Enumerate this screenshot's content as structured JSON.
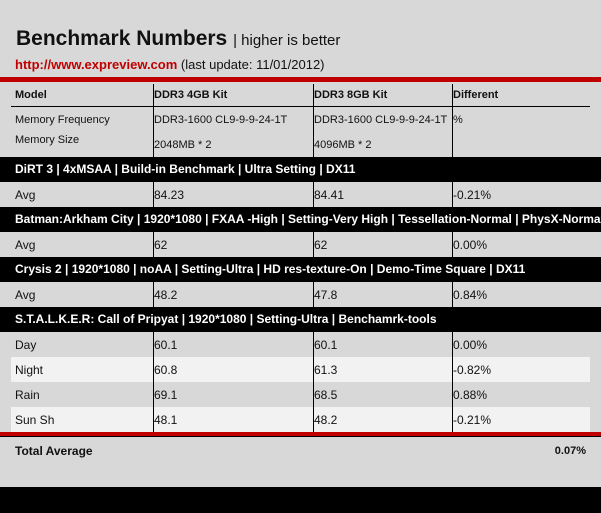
{
  "header": {
    "title": "Benchmark Numbers",
    "subtitle": "| higher is better",
    "url": "http://www.expreview.com",
    "update": "(last update: 11/01/2012)"
  },
  "columns": [
    "Model",
    "DDR3 4GB Kit",
    "DDR3 8GB Kit",
    "Different"
  ],
  "info": {
    "labels": [
      "Memory Frequency",
      "Memory Size"
    ],
    "kit4": {
      "freq": "DDR3-1600 CL9-9-9-24-1T",
      "size": "2048MB * 2"
    },
    "kit8": {
      "freq": "DDR3-1600 CL9-9-9-24-1T",
      "size": "4096MB * 2"
    },
    "diff": "%"
  },
  "sections": [
    {
      "title": "DiRT 3 | 4xMSAA | Build-in Benchmark | Ultra Setting | DX11",
      "rows": [
        {
          "label": "Avg",
          "kit4": "84.23",
          "kit8": "84.41",
          "diff": "-0.21%"
        }
      ]
    },
    {
      "title": "Batman:Arkham City | 1920*1080 | FXAA -High | Setting-Very High | Tessellation-Normal | PhysX-Norma",
      "rows": [
        {
          "label": "Avg",
          "kit4": "62",
          "kit8": "62",
          "diff": "0.00%"
        }
      ]
    },
    {
      "title": "Crysis 2 | 1920*1080 | noAA | Setting-Ultra | HD res-texture-On | Demo-Time Square | DX11",
      "rows": [
        {
          "label": "Avg",
          "kit4": "48.2",
          "kit8": "47.8",
          "diff": "0.84%"
        }
      ]
    },
    {
      "title": "S.T.A.L.K.E.R: Call of Pripyat | 1920*1080 | Setting-Ultra | Benchamrk-tools",
      "rows": [
        {
          "label": "Day",
          "kit4": "60.1",
          "kit8": "60.1",
          "diff": "0.00%"
        },
        {
          "label": "Night",
          "kit4": "60.8",
          "kit8": "61.3",
          "diff": "-0.82%"
        },
        {
          "label": "Rain",
          "kit4": "69.1",
          "kit8": "68.5",
          "diff": "0.88%"
        },
        {
          "label": "Sun Sh",
          "kit4": "48.1",
          "kit8": "48.2",
          "diff": "-0.21%"
        }
      ]
    }
  ],
  "total": {
    "label": "Total Average",
    "value": "0.07%"
  },
  "colors": {
    "accent": "#c00000",
    "bar": "#000000",
    "background": "#d8d8d8"
  }
}
